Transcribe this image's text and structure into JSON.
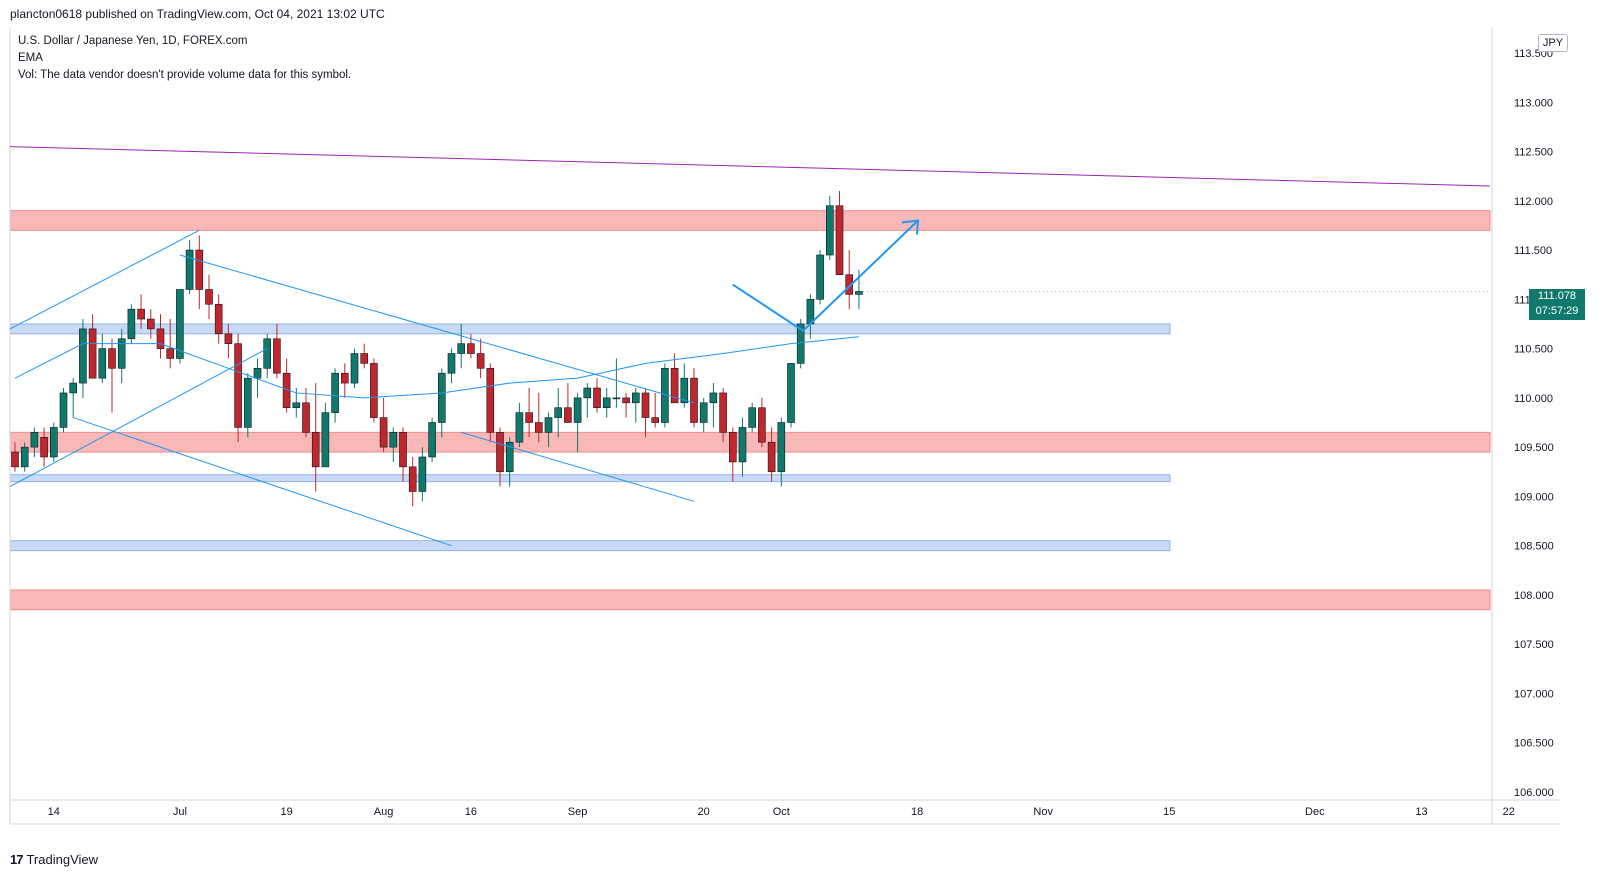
{
  "header": {
    "published": "plancton0618 published on TradingView.com, Oct 04, 2021 13:02 UTC"
  },
  "legend": {
    "title": "U.S. Dollar / Japanese Yen, 1D, FOREX.com",
    "ema": "EMA",
    "vol": "Vol: The data vendor doesn't provide volume data for this symbol."
  },
  "currency": "JPY",
  "last_price": {
    "value": "111.078",
    "countdown": "07:57:29"
  },
  "footer": {
    "brand": "TradingView"
  },
  "colors": {
    "up": "#26a69a",
    "down": "#ef5350",
    "candle_up": "#0f7a6b",
    "candle_down": "#c0272d",
    "trendline": "#2196f3",
    "resistance_line": "#9c27b0",
    "zone_red": "#f9b8b8",
    "zone_blue": "#c8daf5"
  },
  "chart_data": {
    "type": "candlestick",
    "symbol": "USDJPY",
    "timeframe": "1D",
    "title": "U.S. Dollar / Japanese Yen, 1D, FOREX.com",
    "ylim": [
      106.0,
      113.5
    ],
    "y_ticks": [
      "113.500",
      "113.000",
      "112.500",
      "112.000",
      "111.500",
      "111.000",
      "110.500",
      "110.000",
      "109.500",
      "109.000",
      "108.500",
      "108.000",
      "107.500",
      "107.000",
      "106.500",
      "106.000"
    ],
    "x_ticks": [
      {
        "label": "14",
        "bar": 4
      },
      {
        "label": "Jul",
        "bar": 17
      },
      {
        "label": "19",
        "bar": 28
      },
      {
        "label": "Aug",
        "bar": 38
      },
      {
        "label": "16",
        "bar": 47
      },
      {
        "label": "Sep",
        "bar": 58
      },
      {
        "label": "20",
        "bar": 71
      },
      {
        "label": "Oct",
        "bar": 79
      },
      {
        "label": "18",
        "bar": 93
      },
      {
        "label": "Nov",
        "bar": 106
      },
      {
        "label": "15",
        "bar": 119
      },
      {
        "label": "Dec",
        "bar": 134
      },
      {
        "label": "13",
        "bar": 145
      },
      {
        "label": "22",
        "bar": 154
      }
    ],
    "candles": [
      [
        109.45,
        109.55,
        109.25,
        109.3
      ],
      [
        109.3,
        109.55,
        109.25,
        109.5
      ],
      [
        109.5,
        109.7,
        109.4,
        109.65
      ],
      [
        109.6,
        109.7,
        109.3,
        109.4
      ],
      [
        109.4,
        109.75,
        109.35,
        109.7
      ],
      [
        109.7,
        110.1,
        109.65,
        110.05
      ],
      [
        110.05,
        110.2,
        109.8,
        110.15
      ],
      [
        110.15,
        110.8,
        110.0,
        110.7
      ],
      [
        110.7,
        110.85,
        110.2,
        110.2
      ],
      [
        110.2,
        110.65,
        110.15,
        110.5
      ],
      [
        110.5,
        110.6,
        109.85,
        110.3
      ],
      [
        110.3,
        110.7,
        110.15,
        110.6
      ],
      [
        110.6,
        110.95,
        110.55,
        110.9
      ],
      [
        110.9,
        111.05,
        110.7,
        110.8
      ],
      [
        110.8,
        110.9,
        110.6,
        110.7
      ],
      [
        110.7,
        110.85,
        110.4,
        110.5
      ],
      [
        110.5,
        110.8,
        110.3,
        110.4
      ],
      [
        110.4,
        111.1,
        110.35,
        111.1
      ],
      [
        111.1,
        111.6,
        111.05,
        111.5
      ],
      [
        111.5,
        111.65,
        110.9,
        111.1
      ],
      [
        111.1,
        111.25,
        110.8,
        110.95
      ],
      [
        110.95,
        111.05,
        110.55,
        110.65
      ],
      [
        110.65,
        110.75,
        110.4,
        110.55
      ],
      [
        110.55,
        110.65,
        109.55,
        109.7
      ],
      [
        109.7,
        110.25,
        109.6,
        110.2
      ],
      [
        110.2,
        110.4,
        110.0,
        110.3
      ],
      [
        110.3,
        110.65,
        110.2,
        110.6
      ],
      [
        110.6,
        110.75,
        110.2,
        110.25
      ],
      [
        110.25,
        110.4,
        109.85,
        109.9
      ],
      [
        109.9,
        110.1,
        109.8,
        109.95
      ],
      [
        109.95,
        110.1,
        109.6,
        109.65
      ],
      [
        109.65,
        110.15,
        109.05,
        109.3
      ],
      [
        109.3,
        109.95,
        109.3,
        109.85
      ],
      [
        109.85,
        110.3,
        109.75,
        110.25
      ],
      [
        110.25,
        110.35,
        110.0,
        110.15
      ],
      [
        110.15,
        110.5,
        110.1,
        110.45
      ],
      [
        110.45,
        110.55,
        110.3,
        110.35
      ],
      [
        110.35,
        110.4,
        109.75,
        109.8
      ],
      [
        109.8,
        110.0,
        109.45,
        109.5
      ],
      [
        109.5,
        109.7,
        109.35,
        109.65
      ],
      [
        109.65,
        109.7,
        109.15,
        109.3
      ],
      [
        109.3,
        109.4,
        108.9,
        109.05
      ],
      [
        109.05,
        109.5,
        108.95,
        109.4
      ],
      [
        109.4,
        109.8,
        109.35,
        109.75
      ],
      [
        109.75,
        110.3,
        109.6,
        110.25
      ],
      [
        110.25,
        110.5,
        110.15,
        110.45
      ],
      [
        110.45,
        110.75,
        110.3,
        110.55
      ],
      [
        110.55,
        110.65,
        110.4,
        110.45
      ],
      [
        110.45,
        110.6,
        110.2,
        110.3
      ],
      [
        110.3,
        110.35,
        109.55,
        109.65
      ],
      [
        109.65,
        109.7,
        109.1,
        109.25
      ],
      [
        109.25,
        109.6,
        109.1,
        109.55
      ],
      [
        109.55,
        109.95,
        109.5,
        109.85
      ],
      [
        109.85,
        110.1,
        109.6,
        109.75
      ],
      [
        109.75,
        110.05,
        109.55,
        109.65
      ],
      [
        109.65,
        109.85,
        109.5,
        109.8
      ],
      [
        109.8,
        110.1,
        109.6,
        109.9
      ],
      [
        109.9,
        110.15,
        109.75,
        109.75
      ],
      [
        109.75,
        110.05,
        109.45,
        110.0
      ],
      [
        110.0,
        110.15,
        109.8,
        110.1
      ],
      [
        110.1,
        110.2,
        109.85,
        109.9
      ],
      [
        109.9,
        110.1,
        109.8,
        110.0
      ],
      [
        110.0,
        110.4,
        109.9,
        110.0
      ],
      [
        110.0,
        110.05,
        109.8,
        109.95
      ],
      [
        109.95,
        110.1,
        109.75,
        110.05
      ],
      [
        110.05,
        110.1,
        109.6,
        109.8
      ],
      [
        109.8,
        110.05,
        109.7,
        109.75
      ],
      [
        109.75,
        110.35,
        109.7,
        110.3
      ],
      [
        110.3,
        110.45,
        109.95,
        109.95
      ],
      [
        109.95,
        110.35,
        109.9,
        110.2
      ],
      [
        110.2,
        110.3,
        109.7,
        109.75
      ],
      [
        109.75,
        110.0,
        109.65,
        109.95
      ],
      [
        109.95,
        110.15,
        109.7,
        110.05
      ],
      [
        110.05,
        110.1,
        109.55,
        109.65
      ],
      [
        109.65,
        109.7,
        109.15,
        109.35
      ],
      [
        109.35,
        109.8,
        109.2,
        109.7
      ],
      [
        109.7,
        109.95,
        109.65,
        109.9
      ],
      [
        109.9,
        110.0,
        109.5,
        109.55
      ],
      [
        109.55,
        109.7,
        109.15,
        109.25
      ],
      [
        109.25,
        109.8,
        109.1,
        109.75
      ],
      [
        109.75,
        110.35,
        109.7,
        110.35
      ],
      [
        110.35,
        110.8,
        110.3,
        110.75
      ],
      [
        110.75,
        111.05,
        110.6,
        111.0
      ],
      [
        111.0,
        111.5,
        110.95,
        111.45
      ],
      [
        111.45,
        112.05,
        111.4,
        111.95
      ],
      [
        111.95,
        112.1,
        111.25,
        111.25
      ],
      [
        111.25,
        111.5,
        110.9,
        111.05
      ],
      [
        111.05,
        111.3,
        110.9,
        111.08
      ]
    ],
    "ema": [
      110.2,
      110.55,
      110.55,
      110.3,
      110.05,
      110.0,
      110.05,
      110.15,
      110.2,
      110.35,
      110.45,
      110.55,
      110.62
    ],
    "zones": [
      {
        "type": "resistance",
        "color": "red",
        "from": 111.7,
        "to": 111.9
      },
      {
        "type": "support",
        "color": "blue",
        "from": 110.65,
        "to": 110.75
      },
      {
        "type": "resistance",
        "color": "red",
        "from": 109.45,
        "to": 109.65
      },
      {
        "type": "support",
        "color": "blue",
        "from": 109.15,
        "to": 109.22
      },
      {
        "type": "support",
        "color": "blue",
        "from": 108.45,
        "to": 108.55
      },
      {
        "type": "resistance",
        "color": "red",
        "from": 107.85,
        "to": 108.05
      }
    ],
    "annotations": {
      "projection_path": [
        [
          111.15
        ],
        [
          110.68
        ],
        [
          111.8
        ]
      ],
      "resistance_trend": [
        112.55,
        112.15
      ]
    },
    "last_price": 111.078
  }
}
